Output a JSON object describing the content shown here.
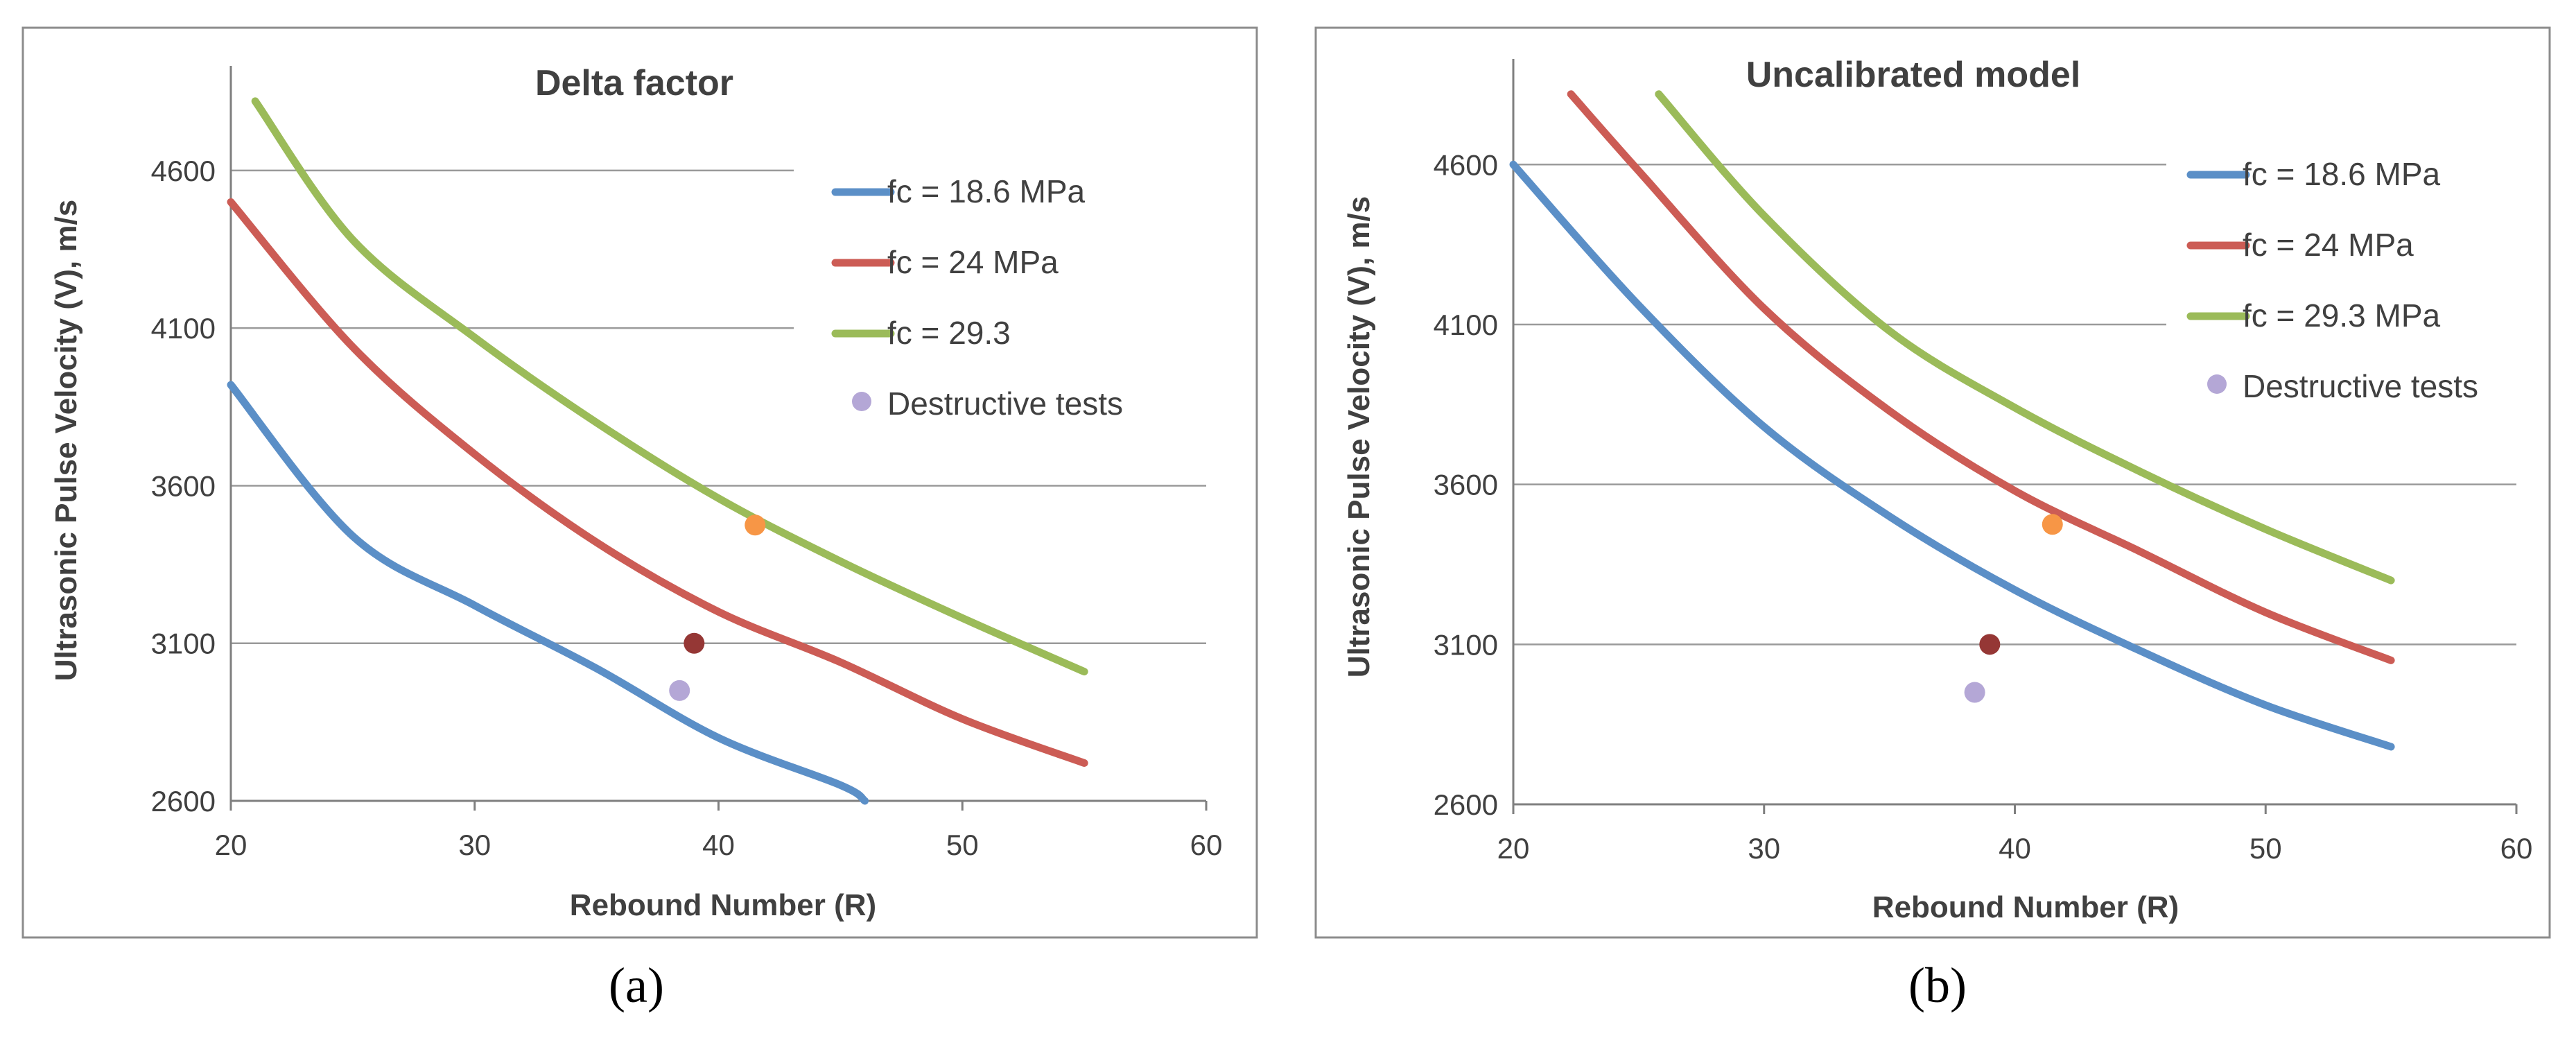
{
  "figure": {
    "panel_labels": [
      "(a)",
      "(b)"
    ]
  },
  "chart_data": [
    {
      "type": "line",
      "panel": "(a)",
      "title": "Delta factor",
      "xlabel": "Rebound Number (R)",
      "ylabel": "Ultrasonic Pulse Velocity (V), m/s",
      "xlim": [
        20,
        60
      ],
      "ylim": [
        2600,
        4800
      ],
      "xticks": [
        20,
        30,
        40,
        50,
        60
      ],
      "yticks": [
        2600,
        3100,
        3600,
        4100,
        4600
      ],
      "grid": true,
      "legend_position": "top-right",
      "series": [
        {
          "name": "fc = 18.6 MPa",
          "color": "#5b8fc7",
          "x": [
            20,
            25,
            30,
            35,
            40,
            45,
            46
          ],
          "y": [
            3920,
            3440,
            3220,
            3020,
            2800,
            2650,
            2600
          ]
        },
        {
          "name": "fc = 24 MPa",
          "color": "#cc5c55",
          "x": [
            20,
            25,
            30,
            35,
            40,
            45,
            50,
            55
          ],
          "y": [
            4500,
            4040,
            3700,
            3420,
            3200,
            3040,
            2860,
            2720
          ]
        },
        {
          "name": "fc = 29.3",
          "color": "#9bbb59",
          "x": [
            21,
            25,
            30,
            35,
            40,
            45,
            50,
            55
          ],
          "y": [
            4820,
            4380,
            4070,
            3800,
            3560,
            3360,
            3180,
            3010
          ]
        }
      ],
      "points": {
        "name": "Destructive tests",
        "legend_color": "#b4a7d6",
        "items": [
          {
            "x": 41.5,
            "y": 3475,
            "color": "#f79646"
          },
          {
            "x": 39.0,
            "y": 3100,
            "color": "#953735"
          },
          {
            "x": 38.4,
            "y": 2950,
            "color": "#b4a7d6"
          }
        ]
      }
    },
    {
      "type": "line",
      "panel": "(b)",
      "title": "Uncalibrated model",
      "xlabel": "Rebound Number (R)",
      "ylabel": "Ultrasonic Pulse Velocity (V), m/s",
      "xlim": [
        20,
        60
      ],
      "ylim": [
        2600,
        4800
      ],
      "xticks": [
        20,
        30,
        40,
        50,
        60
      ],
      "yticks": [
        2600,
        3100,
        3600,
        4100,
        4600
      ],
      "grid": true,
      "legend_position": "top-right",
      "series": [
        {
          "name": "fc = 18.6 MPa",
          "color": "#5b8fc7",
          "x": [
            20,
            25,
            30,
            35,
            40,
            45,
            50,
            55
          ],
          "y": [
            4600,
            4160,
            3780,
            3500,
            3270,
            3080,
            2910,
            2780
          ]
        },
        {
          "name": "fc = 24 MPa",
          "color": "#cc5c55",
          "x": [
            22.3,
            25,
            30,
            35,
            40,
            45,
            50,
            55
          ],
          "y": [
            4820,
            4580,
            4150,
            3830,
            3580,
            3390,
            3200,
            3050
          ]
        },
        {
          "name": "fc = 29.3 MPa",
          "color": "#9bbb59",
          "x": [
            25.8,
            30,
            35,
            40,
            45,
            50,
            55
          ],
          "y": [
            4820,
            4440,
            4080,
            3840,
            3640,
            3460,
            3300
          ]
        }
      ],
      "points": {
        "name": "Destructive tests",
        "legend_color": "#b4a7d6",
        "items": [
          {
            "x": 41.5,
            "y": 3475,
            "color": "#f79646"
          },
          {
            "x": 39.0,
            "y": 3100,
            "color": "#953735"
          },
          {
            "x": 38.4,
            "y": 2950,
            "color": "#b4a7d6"
          }
        ]
      }
    }
  ]
}
